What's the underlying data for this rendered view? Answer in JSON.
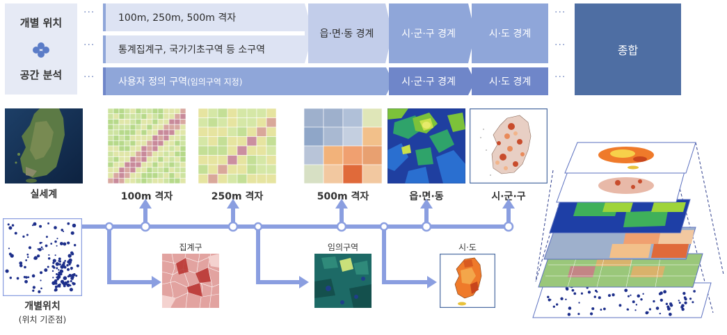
{
  "top": {
    "left_line1": "개별 위치",
    "left_line2": "공간 분석",
    "row1": "100m, 250m, 500m 격자",
    "row2": "통계집계구, 국가기초구역 등 소구역",
    "row3_main": "사용자 정의 구역",
    "row3_note": "(임의구역 지정)",
    "emd_boundary": "읍·면·동 경계",
    "sgg_boundary_1": "시·군·구 경계",
    "sido_boundary_1": "시·도 경계",
    "sgg_boundary_2": "시·군·구 경계",
    "sido_boundary_2": "시·도 경계",
    "summary": "종합"
  },
  "maps": {
    "real_world": "실세계",
    "grid_100m": "100m 격자",
    "grid_250m": "250m 격자",
    "grid_500m": "500m 격자",
    "emd": "읍·면·동",
    "sgg": "시·군·구",
    "individual_main": "개별위치",
    "individual_sub": "(위치 기준점)",
    "aggregation_unit": "집계구",
    "arbitrary_zone": "임의구역",
    "sido": "시·도"
  },
  "colors": {
    "dark_box": "#4e6ea3",
    "mid_box": "#8fa6d9",
    "light_box": "#c2cdea",
    "pale_box": "#dde3f3",
    "flow_line": "#8a9ee0"
  }
}
